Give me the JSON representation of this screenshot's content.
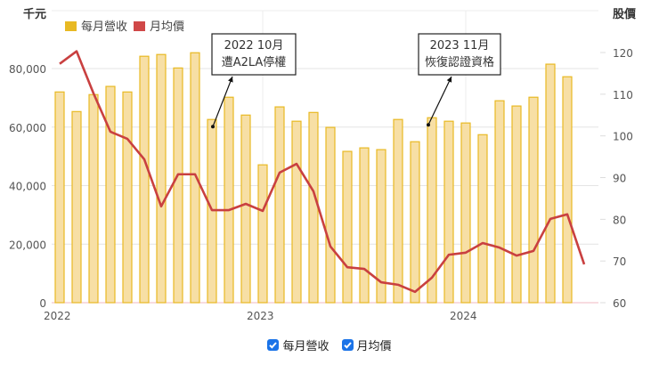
{
  "chart_data": {
    "type": "bar+line",
    "title": "",
    "left_axis": {
      "label": "千元",
      "ticks": [
        "0",
        "20,000",
        "40,000",
        "60,000",
        "80,000"
      ],
      "range": [
        0,
        85000
      ]
    },
    "right_axis": {
      "label": "股價",
      "ticks": [
        "60",
        "70",
        "80",
        "90",
        "100",
        "110",
        "120"
      ],
      "range": [
        60,
        124
      ]
    },
    "x_tick_labels": [
      {
        "label": "2022",
        "index": 0
      },
      {
        "label": "2023",
        "index": 12
      },
      {
        "label": "2024",
        "index": 24
      }
    ],
    "categories": [
      "2022-01",
      "2022-02",
      "2022-03",
      "2022-04",
      "2022-05",
      "2022-06",
      "2022-07",
      "2022-08",
      "2022-09",
      "2022-10",
      "2022-11",
      "2022-12",
      "2023-01",
      "2023-02",
      "2023-03",
      "2023-04",
      "2023-05",
      "2023-06",
      "2023-07",
      "2023-08",
      "2023-09",
      "2023-10",
      "2023-11",
      "2023-12",
      "2024-01",
      "2024-02",
      "2024-03",
      "2024-04",
      "2024-05",
      "2024-06",
      "2024-07",
      "2024-08"
    ],
    "series": [
      {
        "name": "每月營收",
        "type": "bar",
        "axis": "left",
        "color": "#e8b923",
        "values": [
          72000,
          65300,
          71100,
          73900,
          72000,
          84200,
          84800,
          80200,
          85400,
          62600,
          70200,
          64100,
          47100,
          66900,
          62000,
          65000,
          59900,
          51700,
          52900,
          52300,
          62600,
          55000,
          63200,
          62000,
          61400,
          57400,
          69000,
          67200,
          70200,
          81500,
          77200,
          null
        ]
      },
      {
        "name": "月均價",
        "type": "line",
        "axis": "right",
        "color": "#c94040",
        "values": [
          117.3,
          120.3,
          110.2,
          101.0,
          99.3,
          94.4,
          83.1,
          90.8,
          90.8,
          82.2,
          82.2,
          83.7,
          82.0,
          91.2,
          93.3,
          86.7,
          73.5,
          68.5,
          68.1,
          64.9,
          64.3,
          62.6,
          66.0,
          71.5,
          72.0,
          74.3,
          73.2,
          71.3,
          72.4,
          80.1,
          81.2,
          69.2
        ]
      }
    ],
    "annotations": [
      {
        "lines": [
          "2022 10月",
          "遭A2LA停權"
        ],
        "point_index": 9
      },
      {
        "lines": [
          "2023 11月",
          "恢復認證資格"
        ],
        "point_index": 22
      }
    ],
    "grid": true,
    "legend_position": "top-left"
  },
  "legend_top": [
    {
      "label": "每月營收",
      "color": "#e8b923"
    },
    {
      "label": "月均價",
      "color": "#d04848"
    }
  ],
  "legend_bottom": [
    {
      "label": "每月營收",
      "checked": true
    },
    {
      "label": "月均價",
      "checked": true
    }
  ]
}
